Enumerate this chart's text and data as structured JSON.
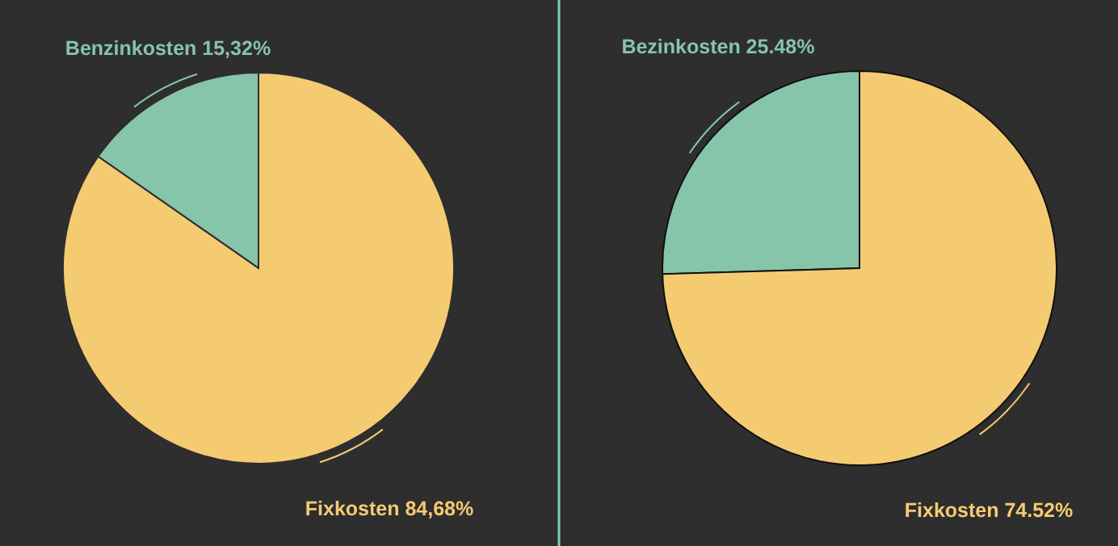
{
  "chart_data": [
    {
      "type": "pie",
      "categories": [
        "Benzinkosten",
        "Fixkosten"
      ],
      "values": [
        15.32,
        84.68
      ],
      "colors": [
        "#86c5a9",
        "#f5cb72"
      ],
      "value_labels": [
        "15,32%",
        "84,68%"
      ]
    },
    {
      "type": "pie",
      "categories": [
        "Bezinkosten",
        "Fixkosten"
      ],
      "values": [
        25.48,
        74.52
      ],
      "colors": [
        "#86c5a9",
        "#f5cb72"
      ],
      "value_labels": [
        "25.48%",
        "74.52%"
      ]
    }
  ]
}
